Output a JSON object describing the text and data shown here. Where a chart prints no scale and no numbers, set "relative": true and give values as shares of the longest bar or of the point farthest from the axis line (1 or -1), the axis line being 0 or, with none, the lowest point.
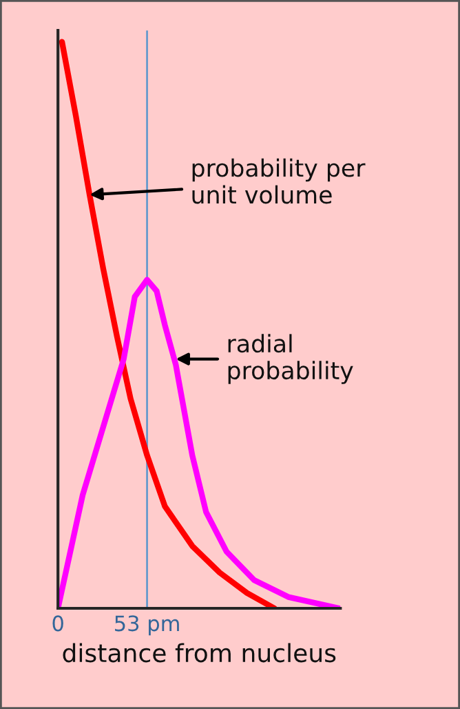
{
  "chart_data": {
    "type": "line",
    "relative": true,
    "xlabel": "distance from nucleus",
    "xlim": [
      0,
      168
    ],
    "xticks": [
      {
        "value": 0,
        "label": "0"
      },
      {
        "value": 53,
        "label": "53 pm"
      }
    ],
    "series": [
      {
        "color": "#ff0000",
        "x": [
          2.4,
          10.6,
          18.8,
          26.9,
          35.1,
          43.2,
          53,
          63.6,
          79.9,
          96.2,
          112.5,
          128.8
        ],
        "values": [
          1.0,
          0.87,
          0.73,
          0.6,
          0.48,
          0.37,
          0.27,
          0.18,
          0.11,
          0.063,
          0.027,
          0
        ]
      },
      {
        "color": "#ff00ff",
        "x": [
          0,
          14.7,
          39.1,
          45.7,
          53,
          58.7,
          63.6,
          70.1,
          79.9,
          88.1,
          100.3,
          116.6,
          137,
          167.2
        ],
        "values": [
          0,
          0.2,
          0.44,
          0.55,
          0.58,
          0.56,
          0.5,
          0.43,
          0.27,
          0.17,
          0.1,
          0.05,
          0.02,
          0
        ]
      }
    ],
    "ref_lines": [
      {
        "axis": "x",
        "value": 53,
        "color": "#6699cc"
      }
    ],
    "annotations": [
      {
        "text": "probability per\nunit volume",
        "x": 18.8,
        "y": 0.73
      },
      {
        "text": "radial\nprobability",
        "x": 70.1,
        "y": 0.44
      }
    ],
    "grid": false,
    "legend": false,
    "marker": "none",
    "line_style": "solid"
  }
}
